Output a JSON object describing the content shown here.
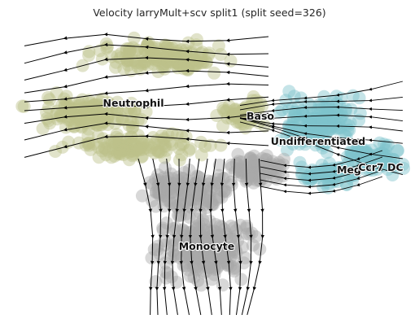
{
  "chart_data": {
    "type": "scatter",
    "title": "Velocity larryMult+scv split1 (split seed=326)",
    "xlabel": "",
    "ylabel": "",
    "grid": false,
    "axes_visible": false,
    "overlay": "velocity streamlines with arrowheads",
    "clusters": [
      {
        "label": "Neutrophil",
        "color": "#bcc08a"
      },
      {
        "label": "Baso",
        "color": "#bcc08a"
      },
      {
        "label": "Undifferentiated",
        "color": "#7fc3cc"
      },
      {
        "label": "Meg",
        "color": "#7fc3cc"
      },
      {
        "label": "Ccr7 DC",
        "color": "#7fc3cc"
      },
      {
        "label": "Monocyte",
        "color": "#a9a9a9"
      }
    ]
  }
}
